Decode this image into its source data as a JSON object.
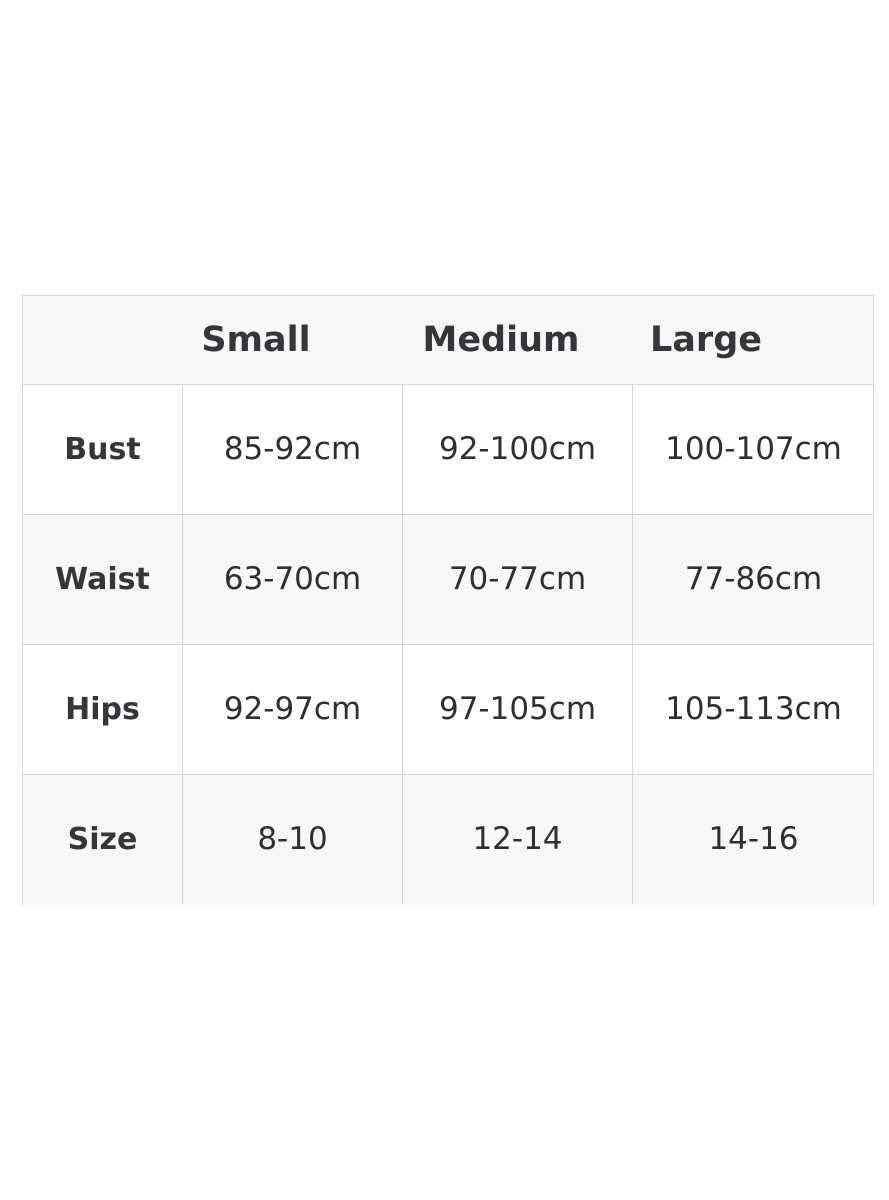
{
  "table": {
    "headers": [
      "Small",
      "Medium",
      "Large"
    ],
    "rows": [
      {
        "label": "Bust",
        "values": [
          "85-92cm",
          "92-100cm",
          "100-107cm"
        ]
      },
      {
        "label": "Waist",
        "values": [
          "63-70cm",
          "70-77cm",
          "77-86cm"
        ]
      },
      {
        "label": "Hips",
        "values": [
          "92-97cm",
          "97-105cm",
          "105-113cm"
        ]
      },
      {
        "label": "Size",
        "values": [
          "8-10",
          "12-14",
          "14-16"
        ]
      }
    ]
  }
}
